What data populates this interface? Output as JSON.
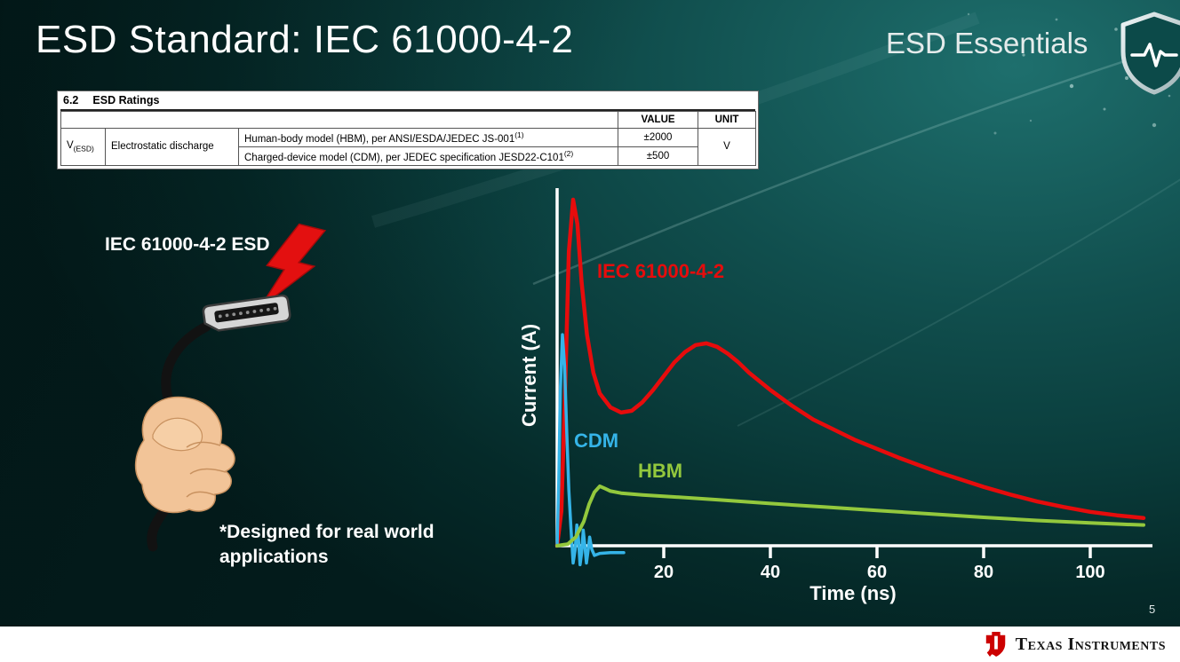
{
  "slide": {
    "title": "ESD Standard: IEC 61000-4-2",
    "brand": "ESD Essentials",
    "page_number": "5"
  },
  "ratings_table": {
    "section_number": "6.2",
    "section_title": "ESD Ratings",
    "col_value": "VALUE",
    "col_unit": "UNIT",
    "param_symbol": "V",
    "param_symbol_sub": "(ESD)",
    "param_name": "Electrostatic discharge",
    "rows": [
      {
        "condition": "Human-body model (HBM), per ANSI/ESDA/JEDEC JS-001",
        "condition_sup": "(1)",
        "value": "±2000"
      },
      {
        "condition": "Charged-device model (CDM), per JEDEC specification JESD22-C101",
        "condition_sup": "(2)",
        "value": "±500"
      }
    ],
    "unit": "V"
  },
  "illustration": {
    "label": "IEC 61000-4-2 ESD",
    "note": "*Designed for real world applications"
  },
  "chart_data": {
    "type": "line",
    "title": "",
    "xlabel": "Time (ns)",
    "ylabel": "Current (A)",
    "x_ticks": [
      20,
      40,
      60,
      80,
      100
    ],
    "xlim": [
      0,
      112
    ],
    "ylim": [
      -0.07,
      1.05
    ],
    "grid": false,
    "axis_color": "#ffffff",
    "series": [
      {
        "id": "iec-61000-4-2",
        "label": "IEC 61000-4-2",
        "color": "#e60c0c",
        "stroke_width": 4.5,
        "points": [
          [
            0,
            0
          ],
          [
            0.8,
            0.1
          ],
          [
            1.5,
            0.45
          ],
          [
            2.2,
            0.85
          ],
          [
            3,
            1.0
          ],
          [
            3.8,
            0.93
          ],
          [
            4.6,
            0.76
          ],
          [
            5.6,
            0.61
          ],
          [
            6.8,
            0.5
          ],
          [
            8,
            0.44
          ],
          [
            10,
            0.4
          ],
          [
            12,
            0.385
          ],
          [
            14,
            0.39
          ],
          [
            16,
            0.415
          ],
          [
            18,
            0.45
          ],
          [
            20,
            0.49
          ],
          [
            22,
            0.53
          ],
          [
            24,
            0.56
          ],
          [
            26,
            0.58
          ],
          [
            28,
            0.585
          ],
          [
            30,
            0.575
          ],
          [
            32,
            0.555
          ],
          [
            34,
            0.53
          ],
          [
            36,
            0.5
          ],
          [
            38,
            0.475
          ],
          [
            40,
            0.45
          ],
          [
            44,
            0.405
          ],
          [
            48,
            0.365
          ],
          [
            52,
            0.335
          ],
          [
            56,
            0.305
          ],
          [
            60,
            0.28
          ],
          [
            64,
            0.255
          ],
          [
            68,
            0.232
          ],
          [
            72,
            0.21
          ],
          [
            76,
            0.19
          ],
          [
            80,
            0.17
          ],
          [
            85,
            0.148
          ],
          [
            90,
            0.128
          ],
          [
            95,
            0.112
          ],
          [
            100,
            0.098
          ],
          [
            105,
            0.088
          ],
          [
            110,
            0.08
          ]
        ]
      },
      {
        "id": "cdm",
        "label": "CDM",
        "color": "#35b4e8",
        "stroke_width": 3.5,
        "points": [
          [
            0,
            0
          ],
          [
            0.3,
            0.18
          ],
          [
            0.6,
            0.45
          ],
          [
            1,
            0.61
          ],
          [
            1.4,
            0.52
          ],
          [
            1.8,
            0.33
          ],
          [
            2.2,
            0.16
          ],
          [
            2.6,
            0.05
          ],
          [
            3,
            -0.05
          ],
          [
            3.4,
            -0.01
          ],
          [
            3.7,
            0.06
          ],
          [
            4,
            0.02
          ],
          [
            4.3,
            -0.055
          ],
          [
            4.6,
            -0.02
          ],
          [
            4.9,
            0.045
          ],
          [
            5.2,
            0
          ],
          [
            5.5,
            -0.05
          ],
          [
            5.8,
            -0.015
          ],
          [
            6.1,
            0.025
          ],
          [
            6.5,
            -0.01
          ],
          [
            7,
            -0.028
          ],
          [
            8,
            -0.022
          ],
          [
            10,
            -0.02
          ],
          [
            12.5,
            -0.02
          ]
        ]
      },
      {
        "id": "hbm",
        "label": "HBM",
        "color": "#93c83d",
        "stroke_width": 4,
        "points": [
          [
            0,
            0
          ],
          [
            2,
            0.005
          ],
          [
            3.5,
            0.025
          ],
          [
            5,
            0.07
          ],
          [
            6,
            0.12
          ],
          [
            7,
            0.155
          ],
          [
            8,
            0.172
          ],
          [
            9,
            0.165
          ],
          [
            10,
            0.158
          ],
          [
            12,
            0.152
          ],
          [
            16,
            0.147
          ],
          [
            20,
            0.143
          ],
          [
            30,
            0.133
          ],
          [
            40,
            0.122
          ],
          [
            50,
            0.112
          ],
          [
            60,
            0.102
          ],
          [
            70,
            0.092
          ],
          [
            80,
            0.082
          ],
          [
            90,
            0.073
          ],
          [
            100,
            0.066
          ],
          [
            106,
            0.062
          ],
          [
            110,
            0.06
          ]
        ]
      }
    ]
  },
  "footer": {
    "logo_text": "Texas Instruments"
  }
}
